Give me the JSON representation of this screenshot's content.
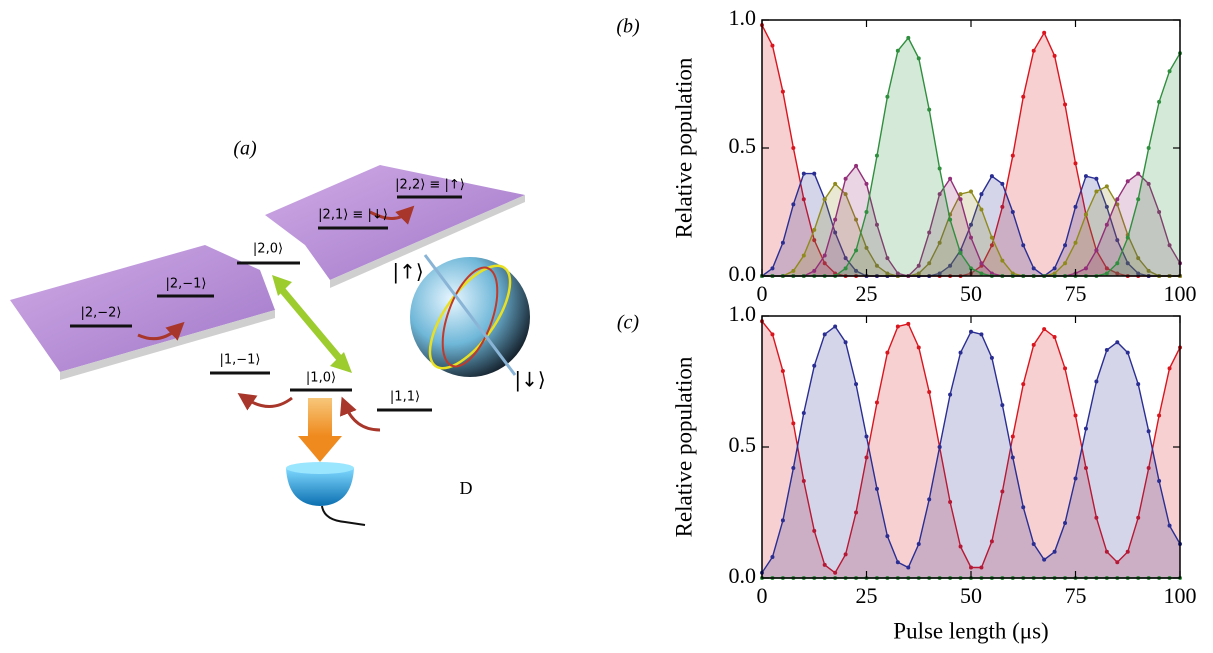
{
  "diagram": {
    "panel_label": "(a)",
    "levels": [
      "|2,2⟩ ≡ |↑⟩",
      "|2,1⟩ ≡ |↓⟩",
      "|2,0⟩",
      "|2,−1⟩",
      "|2,−2⟩",
      "|1,−1⟩",
      "|1,0⟩",
      "|1,1⟩"
    ],
    "bloch_labels": [
      "|↑⟩",
      "|↓⟩"
    ],
    "detector_label": "D"
  },
  "chart_data": [
    {
      "type": "area",
      "panel_label": "(b)",
      "ylabel": "Relative population",
      "x": [
        0,
        2.5,
        5,
        7.5,
        10,
        12.5,
        15,
        17.5,
        20,
        22.5,
        25,
        27.5,
        30,
        32.5,
        35,
        37.5,
        40,
        42.5,
        45,
        47.5,
        50,
        52.5,
        55,
        57.5,
        60,
        62.5,
        65,
        67.5,
        70,
        72.5,
        75,
        77.5,
        80,
        82.5,
        85,
        87.5,
        90,
        92.5,
        95,
        97.5,
        100
      ],
      "xlim": [
        0,
        100
      ],
      "xticks": [
        0,
        25,
        50,
        75,
        100
      ],
      "ylim": [
        0,
        1
      ],
      "yticks": [
        {
          "value": 0,
          "label": "0.0"
        },
        {
          "value": 0.5,
          "label": "0.5"
        },
        {
          "value": 1,
          "label": "1.0"
        }
      ],
      "series": [
        {
          "color": "#d9151e",
          "values": [
            0.98,
            0.9,
            0.72,
            0.5,
            0.3,
            0.14,
            0.05,
            0.01,
            0,
            0,
            0,
            0,
            0,
            0,
            0,
            0,
            0,
            0,
            0,
            0,
            0.01,
            0.04,
            0.12,
            0.27,
            0.47,
            0.7,
            0.88,
            0.95,
            0.86,
            0.67,
            0.44,
            0.24,
            0.1,
            0.03,
            0.01,
            0,
            0,
            0,
            0,
            0,
            0
          ]
        },
        {
          "color": "#2a2e92",
          "values": [
            0,
            0.03,
            0.13,
            0.28,
            0.4,
            0.4,
            0.3,
            0.17,
            0.07,
            0.02,
            0,
            0,
            0,
            0,
            0,
            0,
            0,
            0.01,
            0.04,
            0.1,
            0.2,
            0.32,
            0.39,
            0.36,
            0.25,
            0.12,
            0.03,
            0,
            0.03,
            0.12,
            0.27,
            0.39,
            0.38,
            0.27,
            0.14,
            0.05,
            0.01,
            0,
            0,
            0,
            0
          ]
        },
        {
          "color": "#8f8a1c",
          "values": [
            0,
            0,
            0,
            0.02,
            0.08,
            0.18,
            0.3,
            0.36,
            0.32,
            0.22,
            0.11,
            0.04,
            0.01,
            0,
            0,
            0.01,
            0.05,
            0.13,
            0.24,
            0.32,
            0.33,
            0.26,
            0.15,
            0.06,
            0.01,
            0,
            0,
            0,
            0.01,
            0.05,
            0.13,
            0.24,
            0.33,
            0.35,
            0.28,
            0.16,
            0.07,
            0.02,
            0,
            0,
            0
          ]
        },
        {
          "color": "#922f78",
          "values": [
            0,
            0,
            0,
            0,
            0,
            0.02,
            0.08,
            0.22,
            0.38,
            0.43,
            0.36,
            0.2,
            0.07,
            0.01,
            0,
            0.04,
            0.17,
            0.32,
            0.38,
            0.3,
            0.15,
            0.05,
            0.01,
            0,
            0,
            0,
            0,
            0,
            0,
            0,
            0.01,
            0.03,
            0.1,
            0.2,
            0.3,
            0.37,
            0.4,
            0.36,
            0.25,
            0.12,
            0.05
          ]
        },
        {
          "color": "#2f8f3e",
          "values": [
            0,
            0,
            0,
            0,
            0,
            0,
            0,
            0,
            0.03,
            0.1,
            0.25,
            0.47,
            0.7,
            0.88,
            0.93,
            0.85,
            0.65,
            0.42,
            0.22,
            0.09,
            0.03,
            0.01,
            0,
            0,
            0,
            0,
            0,
            0,
            0,
            0,
            0,
            0,
            0,
            0.01,
            0.05,
            0.15,
            0.3,
            0.5,
            0.68,
            0.8,
            0.87
          ]
        }
      ]
    },
    {
      "type": "area",
      "panel_label": "(c)",
      "ylabel": "Relative population",
      "xlabel": "Pulse length (μs)",
      "x": [
        0,
        2.5,
        5,
        7.5,
        10,
        12.5,
        15,
        17.5,
        20,
        22.5,
        25,
        27.5,
        30,
        32.5,
        35,
        37.5,
        40,
        42.5,
        45,
        47.5,
        50,
        52.5,
        55,
        57.5,
        60,
        62.5,
        65,
        67.5,
        70,
        72.5,
        75,
        77.5,
        80,
        82.5,
        85,
        87.5,
        90,
        92.5,
        95,
        97.5,
        100
      ],
      "xlim": [
        0,
        100
      ],
      "xticks": [
        0,
        25,
        50,
        75,
        100
      ],
      "ylim": [
        0,
        1
      ],
      "yticks": [
        {
          "value": 0,
          "label": "0.0"
        },
        {
          "value": 0.5,
          "label": "0.5"
        },
        {
          "value": 1,
          "label": "1.0"
        }
      ],
      "series": [
        {
          "color": "#d9151e",
          "values": [
            0.98,
            0.93,
            0.79,
            0.59,
            0.37,
            0.18,
            0.05,
            0.02,
            0.09,
            0.25,
            0.46,
            0.67,
            0.86,
            0.96,
            0.97,
            0.88,
            0.71,
            0.5,
            0.29,
            0.12,
            0.04,
            0.04,
            0.14,
            0.33,
            0.54,
            0.74,
            0.89,
            0.95,
            0.92,
            0.8,
            0.62,
            0.42,
            0.23,
            0.1,
            0.06,
            0.1,
            0.23,
            0.42,
            0.62,
            0.8,
            0.88
          ]
        },
        {
          "color": "#2a2e92",
          "values": [
            0.02,
            0.08,
            0.22,
            0.42,
            0.63,
            0.81,
            0.93,
            0.96,
            0.9,
            0.74,
            0.54,
            0.34,
            0.16,
            0.06,
            0.04,
            0.13,
            0.3,
            0.5,
            0.7,
            0.86,
            0.94,
            0.93,
            0.84,
            0.66,
            0.46,
            0.27,
            0.13,
            0.07,
            0.1,
            0.21,
            0.38,
            0.57,
            0.75,
            0.87,
            0.9,
            0.86,
            0.74,
            0.56,
            0.37,
            0.2,
            0.13
          ]
        },
        {
          "color": "#2f8f3e",
          "values": [
            0,
            0,
            0,
            0,
            0,
            0,
            0,
            0,
            0,
            0,
            0,
            0,
            0,
            0,
            0,
            0,
            0,
            0,
            0,
            0,
            0,
            0,
            0,
            0,
            0,
            0,
            0,
            0,
            0,
            0,
            0,
            0,
            0,
            0,
            0,
            0,
            0,
            0,
            0,
            0,
            0
          ]
        }
      ]
    }
  ]
}
